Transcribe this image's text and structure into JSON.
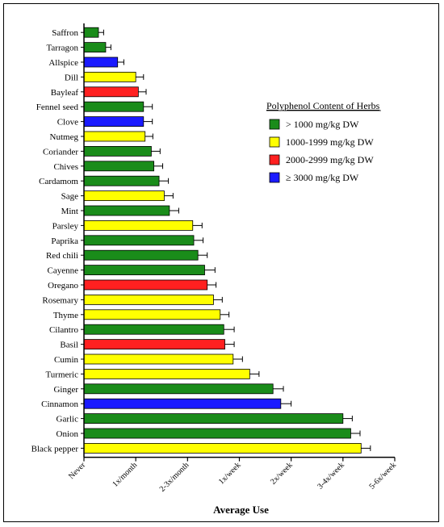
{
  "chart_data": {
    "type": "bar",
    "orientation": "horizontal",
    "xlabel": "Average Use",
    "ylabel": "",
    "xlim": [
      0,
      6
    ],
    "x_ticks": [
      "Never",
      "1x/month",
      "2-3x/month",
      "1x/week",
      "2x/week",
      "3-4x/week",
      "5-6x/week"
    ],
    "legend": {
      "title": "Polyphenol Content of Herbs",
      "position": "right",
      "entries": [
        {
          "label": "> 1000 mg/kg DW",
          "color": "#1a8c1a"
        },
        {
          "label": "1000-1999 mg/kg DW",
          "color": "#ffff00"
        },
        {
          "label": "2000-2999 mg/kg DW",
          "color": "#ff2020"
        },
        {
          "label": "≥  3000 mg/kg DW",
          "color": "#1a1aff"
        }
      ]
    },
    "categories": [
      "Saffron",
      "Tarragon",
      "Allspice",
      "Dill",
      "Bayleaf",
      "Fennel seed",
      "Clove",
      "Nutmeg",
      "Coriander",
      "Chives",
      "Cardamom",
      "Sage",
      "Mint",
      "Parsley",
      "Paprika",
      "Red chili",
      "Cayenne",
      "Oregano",
      "Rosemary",
      "Thyme",
      "Cilantro",
      "Basil",
      "Cumin",
      "Turmeric",
      "Ginger",
      "Cinnamon",
      "Garlic",
      "Onion",
      "Black pepper"
    ],
    "values": [
      0.28,
      0.42,
      0.65,
      1.0,
      1.05,
      1.15,
      1.15,
      1.18,
      1.3,
      1.35,
      1.45,
      1.55,
      1.65,
      2.1,
      2.12,
      2.2,
      2.33,
      2.38,
      2.5,
      2.63,
      2.7,
      2.72,
      2.88,
      3.2,
      3.65,
      3.8,
      5.0,
      5.15,
      5.35
    ],
    "errors": [
      0.1,
      0.1,
      0.12,
      0.15,
      0.15,
      0.17,
      0.17,
      0.15,
      0.17,
      0.17,
      0.18,
      0.17,
      0.18,
      0.18,
      0.18,
      0.18,
      0.2,
      0.17,
      0.17,
      0.17,
      0.2,
      0.18,
      0.18,
      0.18,
      0.2,
      0.2,
      0.18,
      0.18,
      0.18
    ],
    "group": [
      0,
      0,
      3,
      1,
      2,
      0,
      3,
      1,
      0,
      0,
      0,
      1,
      0,
      1,
      0,
      0,
      0,
      2,
      1,
      1,
      0,
      2,
      1,
      1,
      0,
      3,
      0,
      0,
      1
    ]
  }
}
